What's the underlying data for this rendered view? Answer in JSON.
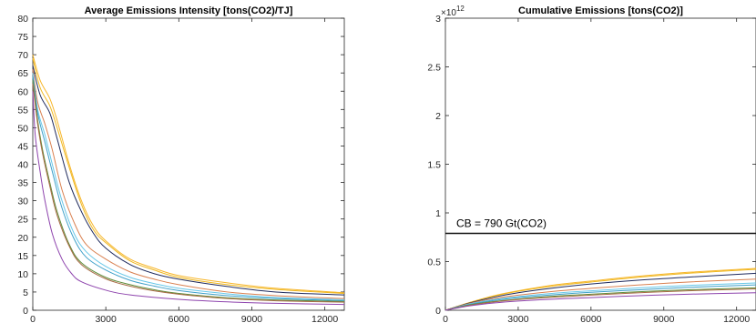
{
  "chart_data": [
    {
      "type": "line",
      "title": "Average Emissions Intensity [tons(CO2)/TJ]",
      "xlim": [
        0,
        12800
      ],
      "ylim": [
        0,
        80
      ],
      "xticks": [
        0,
        3000,
        6000,
        9000,
        12000
      ],
      "xtick_labels": [
        "0",
        "3000",
        "6000",
        "9000",
        "12000"
      ],
      "yticks": [
        0,
        5,
        10,
        15,
        20,
        25,
        30,
        35,
        40,
        45,
        50,
        55,
        60,
        65,
        70,
        75,
        80
      ],
      "ytick_labels": [
        "0",
        "5",
        "10",
        "15",
        "20",
        "25",
        "30",
        "35",
        "40",
        "45",
        "50",
        "55",
        "60",
        "65",
        "70",
        "75",
        "80"
      ],
      "grid": false,
      "series": [
        {
          "color": "#f7b62b",
          "x": [
            0,
            300,
            700,
            1000,
            1500,
            2000,
            2500,
            3000,
            4000,
            5000,
            6000,
            8000,
            10000,
            12800
          ],
          "values": [
            70,
            63,
            58,
            52,
            40,
            30,
            23,
            19,
            14,
            11.5,
            9.5,
            7.5,
            6,
            4.8
          ]
        },
        {
          "color": "#efb820",
          "x": [
            0,
            300,
            700,
            1000,
            1500,
            2000,
            2500,
            3000,
            4000,
            5000,
            6000,
            8000,
            10000,
            12800
          ],
          "values": [
            69,
            61,
            56,
            50,
            39,
            29,
            22,
            18.5,
            13.5,
            11,
            9,
            7,
            5.7,
            4.6
          ]
        },
        {
          "color": "#1f2a5c",
          "x": [
            0,
            300,
            700,
            1000,
            1500,
            2000,
            2500,
            3000,
            4000,
            5000,
            6000,
            8000,
            10000,
            12800
          ],
          "values": [
            67,
            59,
            54,
            47,
            35,
            27,
            21,
            17,
            12.5,
            10,
            8.5,
            6.5,
            5,
            4.2
          ]
        },
        {
          "color": "#d98050",
          "x": [
            0,
            200,
            500,
            800,
            1200,
            1700,
            2200,
            3000,
            4000,
            5000,
            6000,
            8000,
            10000,
            12800
          ],
          "values": [
            66,
            57,
            51,
            44,
            33,
            24,
            18,
            14,
            10.5,
            8.5,
            7,
            5,
            4,
            3.2
          ]
        },
        {
          "color": "#67c7e8",
          "x": [
            0,
            200,
            500,
            800,
            1200,
            1700,
            2200,
            3000,
            4000,
            5000,
            6000,
            8000,
            10000,
            12800
          ],
          "values": [
            65,
            55,
            48,
            40,
            30,
            21,
            16,
            12,
            9,
            7.3,
            6,
            4.5,
            3.5,
            2.9
          ]
        },
        {
          "color": "#3fa0c9",
          "x": [
            0,
            200,
            500,
            800,
            1200,
            1700,
            2200,
            3000,
            4000,
            5000,
            6000,
            8000,
            10000,
            12800
          ],
          "values": [
            64,
            54,
            46,
            38,
            28,
            19.5,
            14.5,
            11,
            8.2,
            6.6,
            5.4,
            4,
            3.2,
            2.6
          ]
        },
        {
          "color": "#5f8d3a",
          "x": [
            0,
            200,
            400,
            700,
            1000,
            1500,
            2000,
            3000,
            4000,
            5000,
            6000,
            8000,
            10000,
            12800
          ],
          "values": [
            63,
            52,
            44,
            35,
            27,
            18,
            13,
            9,
            7,
            5.6,
            4.6,
            3.4,
            2.8,
            2.4
          ]
        },
        {
          "color": "#a86b45",
          "x": [
            0,
            200,
            400,
            700,
            1000,
            1500,
            2000,
            3000,
            4000,
            5000,
            6000,
            8000,
            10000,
            12800
          ],
          "values": [
            62,
            51,
            43,
            34,
            26,
            17.5,
            12.5,
            8.6,
            6.6,
            5.3,
            4.4,
            3.2,
            2.6,
            2.2
          ]
        },
        {
          "color": "#8e44ad",
          "x": [
            0,
            100,
            300,
            500,
            800,
            1200,
            1600,
            2000,
            3000,
            4000,
            6000,
            8000,
            10000,
            12800
          ],
          "values": [
            60,
            48,
            38,
            30,
            21,
            14,
            10,
            7.8,
            5.5,
            4.2,
            3,
            2.3,
            1.9,
            1.6
          ]
        }
      ]
    },
    {
      "type": "line",
      "title": "Cumulative Emissions [tons(CO2)]",
      "xlim": [
        0,
        12800
      ],
      "ylim": [
        0,
        3
      ],
      "y_exponent_label": "×10",
      "y_exponent": "12",
      "xticks": [
        0,
        3000,
        6000,
        9000,
        12000
      ],
      "xtick_labels": [
        "0",
        "3000",
        "6000",
        "9000",
        "12000"
      ],
      "yticks": [
        0,
        0.5,
        1,
        1.5,
        2,
        2.5,
        3
      ],
      "ytick_labels": [
        "0",
        "0.5",
        "1",
        "1.5",
        "2",
        "2.5",
        "3"
      ],
      "grid": false,
      "reference_line": {
        "y": 0.79,
        "label": "CB = 790 Gt(CO2)",
        "color": "#111111"
      },
      "series": [
        {
          "color": "#f7b62b",
          "x": [
            0,
            1000,
            2000,
            3000,
            4500,
            6000,
            8000,
            10000,
            12800
          ],
          "values": [
            0,
            0.08,
            0.15,
            0.2,
            0.26,
            0.3,
            0.35,
            0.39,
            0.43
          ]
        },
        {
          "color": "#efb820",
          "x": [
            0,
            1000,
            2000,
            3000,
            4500,
            6000,
            8000,
            10000,
            12800
          ],
          "values": [
            0,
            0.08,
            0.145,
            0.195,
            0.25,
            0.29,
            0.34,
            0.38,
            0.42
          ]
        },
        {
          "color": "#1f2a5c",
          "x": [
            0,
            1000,
            2000,
            3000,
            4500,
            6000,
            8000,
            10000,
            12800
          ],
          "values": [
            0,
            0.075,
            0.135,
            0.18,
            0.23,
            0.27,
            0.31,
            0.34,
            0.38
          ]
        },
        {
          "color": "#d98050",
          "x": [
            0,
            1000,
            2000,
            3000,
            4500,
            6000,
            8000,
            10000,
            12800
          ],
          "values": [
            0,
            0.07,
            0.12,
            0.155,
            0.195,
            0.225,
            0.26,
            0.29,
            0.32
          ]
        },
        {
          "color": "#67c7e8",
          "x": [
            0,
            1000,
            2000,
            3000,
            4500,
            6000,
            8000,
            10000,
            12800
          ],
          "values": [
            0,
            0.065,
            0.11,
            0.14,
            0.175,
            0.2,
            0.23,
            0.255,
            0.28
          ]
        },
        {
          "color": "#3fa0c9",
          "x": [
            0,
            1000,
            2000,
            3000,
            4500,
            6000,
            8000,
            10000,
            12800
          ],
          "values": [
            0,
            0.06,
            0.1,
            0.13,
            0.16,
            0.185,
            0.21,
            0.235,
            0.26
          ]
        },
        {
          "color": "#5f8d3a",
          "x": [
            0,
            1000,
            2000,
            3000,
            4500,
            6000,
            8000,
            10000,
            12800
          ],
          "values": [
            0,
            0.055,
            0.09,
            0.115,
            0.145,
            0.165,
            0.19,
            0.21,
            0.23
          ]
        },
        {
          "color": "#a86b45",
          "x": [
            0,
            1000,
            2000,
            3000,
            4500,
            6000,
            8000,
            10000,
            12800
          ],
          "values": [
            0,
            0.05,
            0.085,
            0.11,
            0.135,
            0.155,
            0.18,
            0.2,
            0.22
          ]
        },
        {
          "color": "#8e44ad",
          "x": [
            0,
            1000,
            2000,
            3000,
            4500,
            6000,
            8000,
            10000,
            12800
          ],
          "values": [
            0,
            0.045,
            0.075,
            0.095,
            0.115,
            0.13,
            0.15,
            0.165,
            0.18
          ]
        }
      ]
    }
  ]
}
